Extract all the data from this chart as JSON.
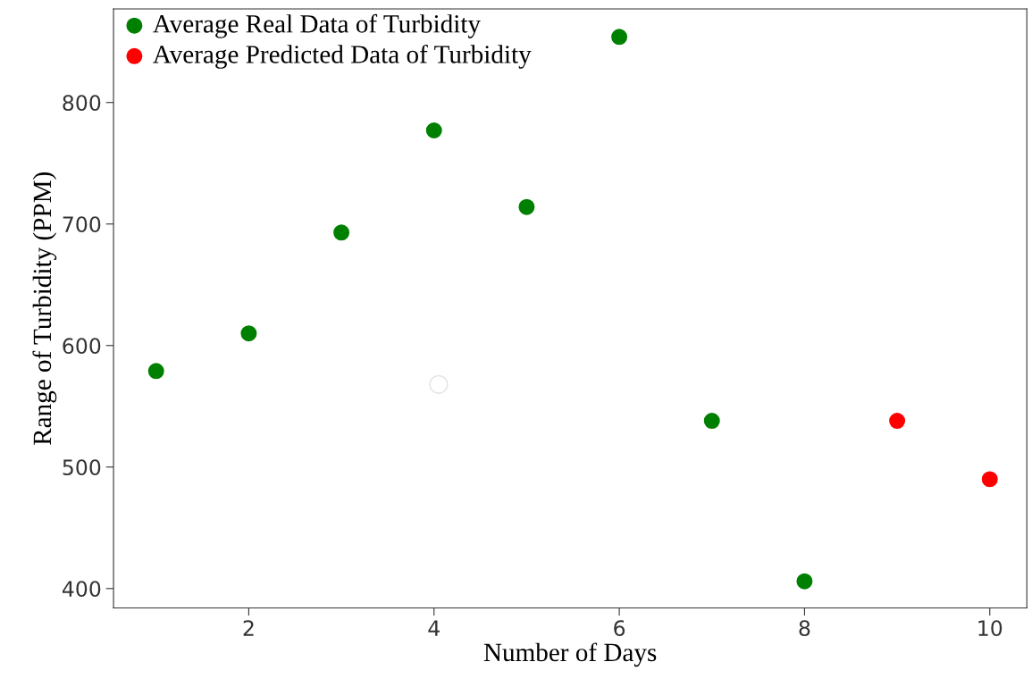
{
  "chart_data": {
    "type": "scatter",
    "xlabel": "Number of Days",
    "ylabel": "Range of Turbidity (PPM)",
    "xlim": [
      0.54,
      10.4
    ],
    "ylim": [
      384,
      877
    ],
    "xticks": [
      2,
      4,
      6,
      8,
      10
    ],
    "yticks": [
      400,
      500,
      600,
      700,
      800
    ],
    "grid": false,
    "legend": "top left",
    "marker": "circle",
    "series": [
      {
        "name": "Average Real Data of Turbidity",
        "color": "#008000",
        "x": [
          1,
          2,
          3,
          4,
          5,
          6,
          7,
          8
        ],
        "values": [
          579,
          610,
          693,
          777,
          714,
          854,
          538,
          406
        ]
      },
      {
        "name": "Average Predicted Data of Turbidity",
        "color": "#ff0000",
        "x": [
          9,
          10
        ],
        "values": [
          538,
          490
        ]
      },
      {
        "color": "#ffffff",
        "x": [
          4.05
        ],
        "values": [
          568
        ]
      }
    ]
  }
}
